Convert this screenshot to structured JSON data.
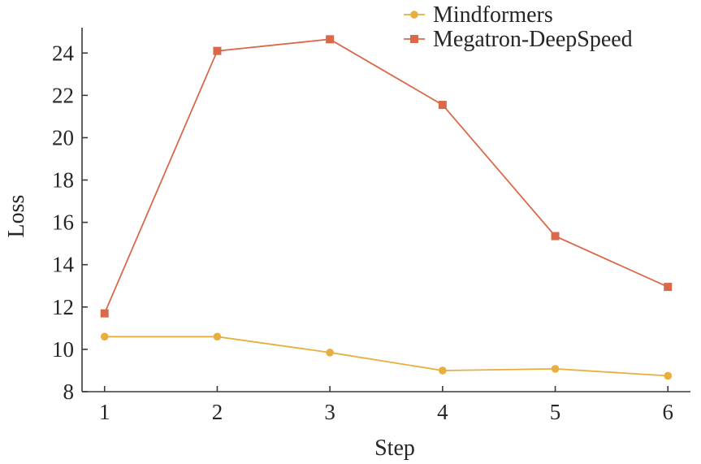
{
  "chart_data": {
    "type": "line",
    "xlabel": "Step",
    "ylabel": "Loss",
    "x": [
      1,
      2,
      3,
      4,
      5,
      6
    ],
    "xlim": [
      0.8,
      6.2
    ],
    "ylim": [
      8,
      25.2
    ],
    "yticks": [
      8,
      10,
      12,
      14,
      16,
      18,
      20,
      22,
      24
    ],
    "xticks": [
      1,
      2,
      3,
      4,
      5,
      6
    ],
    "grid": false,
    "legend_position": "top-right",
    "series": [
      {
        "name": "Mindformers",
        "color": "#E8AE3F",
        "marker": "circle",
        "values": [
          10.6,
          10.6,
          9.85,
          9.0,
          9.08,
          8.75
        ]
      },
      {
        "name": "Megatron-DeepSpeed",
        "color": "#D9694A",
        "marker": "square",
        "values": [
          11.7,
          24.1,
          24.65,
          21.55,
          15.35,
          12.95
        ]
      }
    ]
  }
}
